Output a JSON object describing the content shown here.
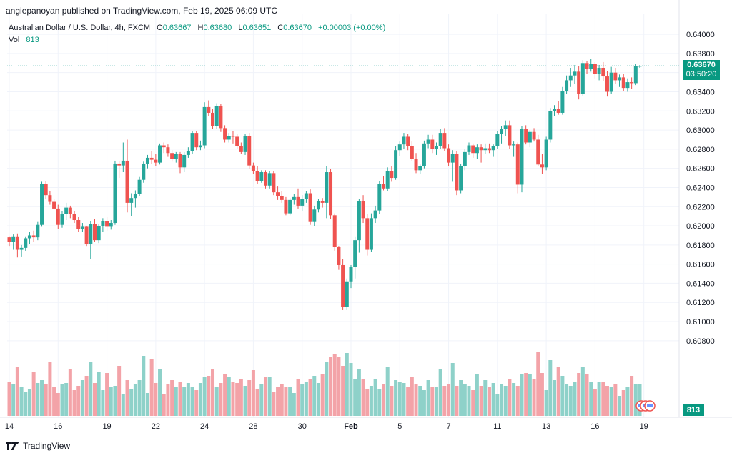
{
  "header": {
    "publisher_line": "angiepanoyan published on TradingView.com, Feb 19, 2025 06:09 UTC"
  },
  "legend": {
    "symbol": "Australian Dollar / U.S. Dollar, 4h, FXCM",
    "o_label": "O",
    "o": "0.63667",
    "h_label": "H",
    "h": "0.63680",
    "l_label": "L",
    "l": "0.63651",
    "c_label": "C",
    "c": "0.63670",
    "change": "+0.00003 (+0.00%)",
    "vol_label": "Vol",
    "vol": "813"
  },
  "price_tag": {
    "price": "0.63670",
    "countdown": "03:50:20"
  },
  "volume_tag": "813",
  "footer": {
    "brand": "TradingView"
  },
  "colors": {
    "up": "#26a69a",
    "down": "#ef5350",
    "up_vol": "#8ed1c9",
    "down_vol": "#f3a3a8",
    "accent": "#089981"
  },
  "chart_data": {
    "type": "candlestick",
    "title": "Australian Dollar / U.S. Dollar, 4h, FXCM",
    "ylim": [
      0.6,
      0.6415
    ],
    "y_ticks": [
      "0.64000",
      "0.63800",
      "0.63600",
      "0.63400",
      "0.63200",
      "0.63000",
      "0.62800",
      "0.62600",
      "0.62400",
      "0.62200",
      "0.62000",
      "0.61800",
      "0.61600",
      "0.61400",
      "0.61200",
      "0.61000",
      "0.60800"
    ],
    "x_tick_labels": [
      {
        "label": "14",
        "i": 0
      },
      {
        "label": "16",
        "i": 12
      },
      {
        "label": "19",
        "i": 24
      },
      {
        "label": "22",
        "i": 36
      },
      {
        "label": "24",
        "i": 48
      },
      {
        "label": "28",
        "i": 60
      },
      {
        "label": "30",
        "i": 72
      },
      {
        "label": "Feb",
        "i": 84
      },
      {
        "label": "5",
        "i": 96
      },
      {
        "label": "7",
        "i": 108
      },
      {
        "label": "11",
        "i": 120
      },
      {
        "label": "13",
        "i": 132
      },
      {
        "label": "16",
        "i": 144
      },
      {
        "label": "19",
        "i": 156
      }
    ],
    "last_price": 0.6367,
    "candles": [
      [
        0.6188,
        0.6189,
        0.6179,
        0.6183
      ],
      [
        0.6183,
        0.6191,
        0.6175,
        0.6189
      ],
      [
        0.6189,
        0.6192,
        0.6167,
        0.6175
      ],
      [
        0.6175,
        0.618,
        0.6168,
        0.6177
      ],
      [
        0.6177,
        0.6189,
        0.6174,
        0.6187
      ],
      [
        0.6187,
        0.6194,
        0.6181,
        0.619
      ],
      [
        0.619,
        0.6195,
        0.6183,
        0.6188
      ],
      [
        0.6188,
        0.6204,
        0.6185,
        0.6201
      ],
      [
        0.6201,
        0.6246,
        0.6199,
        0.6244
      ],
      [
        0.6244,
        0.6247,
        0.6228,
        0.6232
      ],
      [
        0.6232,
        0.6236,
        0.6222,
        0.6225
      ],
      [
        0.6225,
        0.6228,
        0.6217,
        0.6218
      ],
      [
        0.6218,
        0.6222,
        0.6197,
        0.6201
      ],
      [
        0.6201,
        0.6215,
        0.6198,
        0.6212
      ],
      [
        0.6212,
        0.6224,
        0.6206,
        0.6219
      ],
      [
        0.6219,
        0.6221,
        0.6208,
        0.6212
      ],
      [
        0.6212,
        0.6215,
        0.6203,
        0.6206
      ],
      [
        0.6206,
        0.6209,
        0.6194,
        0.6197
      ],
      [
        0.6197,
        0.6203,
        0.6194,
        0.6199
      ],
      [
        0.6199,
        0.62,
        0.6179,
        0.6181
      ],
      [
        0.6181,
        0.6205,
        0.6165,
        0.6202
      ],
      [
        0.6202,
        0.6207,
        0.6183,
        0.6185
      ],
      [
        0.6185,
        0.6202,
        0.6182,
        0.62
      ],
      [
        0.62,
        0.6208,
        0.6194,
        0.6205
      ],
      [
        0.6205,
        0.6209,
        0.6195,
        0.6199
      ],
      [
        0.6199,
        0.6206,
        0.6196,
        0.6203
      ],
      [
        0.6203,
        0.6268,
        0.6201,
        0.6265
      ],
      [
        0.6265,
        0.6268,
        0.625,
        0.6263
      ],
      [
        0.6263,
        0.6287,
        0.6256,
        0.6268
      ],
      [
        0.6268,
        0.629,
        0.6214,
        0.6224
      ],
      [
        0.6224,
        0.6234,
        0.621,
        0.6229
      ],
      [
        0.6229,
        0.6237,
        0.6219,
        0.6233
      ],
      [
        0.6233,
        0.6251,
        0.6231,
        0.6248
      ],
      [
        0.6248,
        0.6267,
        0.6245,
        0.6265
      ],
      [
        0.6265,
        0.6274,
        0.626,
        0.6271
      ],
      [
        0.6271,
        0.6278,
        0.6265,
        0.6269
      ],
      [
        0.6269,
        0.6275,
        0.6262,
        0.6266
      ],
      [
        0.6266,
        0.6286,
        0.6264,
        0.6284
      ],
      [
        0.6284,
        0.6287,
        0.6276,
        0.6282
      ],
      [
        0.6282,
        0.6285,
        0.6272,
        0.6276
      ],
      [
        0.6276,
        0.6279,
        0.6267,
        0.627
      ],
      [
        0.627,
        0.6277,
        0.6266,
        0.6275
      ],
      [
        0.6275,
        0.6277,
        0.6255,
        0.6261
      ],
      [
        0.6261,
        0.6277,
        0.6256,
        0.6274
      ],
      [
        0.6274,
        0.6282,
        0.6271,
        0.6278
      ],
      [
        0.6278,
        0.6299,
        0.6275,
        0.6297
      ],
      [
        0.6297,
        0.6299,
        0.6279,
        0.6282
      ],
      [
        0.6282,
        0.6289,
        0.6279,
        0.6284
      ],
      [
        0.6284,
        0.6329,
        0.6281,
        0.6324
      ],
      [
        0.6324,
        0.6331,
        0.6315,
        0.6318
      ],
      [
        0.6318,
        0.6322,
        0.6301,
        0.6304
      ],
      [
        0.6304,
        0.6328,
        0.6301,
        0.6325
      ],
      [
        0.6325,
        0.6327,
        0.6298,
        0.6302
      ],
      [
        0.6302,
        0.6305,
        0.6287,
        0.629
      ],
      [
        0.629,
        0.6297,
        0.6287,
        0.6294
      ],
      [
        0.6294,
        0.6299,
        0.6286,
        0.6293
      ],
      [
        0.6293,
        0.6296,
        0.628,
        0.6283
      ],
      [
        0.6283,
        0.6287,
        0.6275,
        0.6277
      ],
      [
        0.6277,
        0.6296,
        0.6274,
        0.6294
      ],
      [
        0.6294,
        0.6297,
        0.6259,
        0.6263
      ],
      [
        0.6263,
        0.6266,
        0.6254,
        0.6257
      ],
      [
        0.6257,
        0.6262,
        0.6244,
        0.6247
      ],
      [
        0.6247,
        0.6258,
        0.6245,
        0.6256
      ],
      [
        0.6256,
        0.6258,
        0.6239,
        0.6242
      ],
      [
        0.6242,
        0.6257,
        0.6239,
        0.6255
      ],
      [
        0.6255,
        0.6257,
        0.6232,
        0.6235
      ],
      [
        0.6235,
        0.6241,
        0.6227,
        0.6231
      ],
      [
        0.6231,
        0.6236,
        0.6224,
        0.6227
      ],
      [
        0.6227,
        0.623,
        0.6211,
        0.6213
      ],
      [
        0.6213,
        0.6229,
        0.6211,
        0.6227
      ],
      [
        0.6227,
        0.6233,
        0.6222,
        0.623
      ],
      [
        0.623,
        0.6239,
        0.6218,
        0.6221
      ],
      [
        0.6221,
        0.6232,
        0.6215,
        0.6228
      ],
      [
        0.6228,
        0.6236,
        0.6224,
        0.6234
      ],
      [
        0.6234,
        0.6238,
        0.6201,
        0.6204
      ],
      [
        0.6204,
        0.6221,
        0.62,
        0.6217
      ],
      [
        0.6217,
        0.6228,
        0.6214,
        0.6226
      ],
      [
        0.6226,
        0.6229,
        0.6219,
        0.6224
      ],
      [
        0.6224,
        0.6262,
        0.6208,
        0.6256
      ],
      [
        0.6256,
        0.6259,
        0.6207,
        0.6211
      ],
      [
        0.6211,
        0.6213,
        0.6174,
        0.6178
      ],
      [
        0.6178,
        0.6179,
        0.6154,
        0.6159
      ],
      [
        0.6159,
        0.6165,
        0.6112,
        0.6115
      ],
      [
        0.6115,
        0.6145,
        0.6112,
        0.6142
      ],
      [
        0.6142,
        0.6159,
        0.6135,
        0.6157
      ],
      [
        0.6157,
        0.6189,
        0.6145,
        0.6185
      ],
      [
        0.6185,
        0.6228,
        0.6172,
        0.6226
      ],
      [
        0.6226,
        0.6232,
        0.6203,
        0.6208
      ],
      [
        0.6208,
        0.6212,
        0.6169,
        0.6175
      ],
      [
        0.6175,
        0.6213,
        0.6173,
        0.6208
      ],
      [
        0.6208,
        0.6221,
        0.6203,
        0.6216
      ],
      [
        0.6216,
        0.6247,
        0.6212,
        0.6244
      ],
      [
        0.6244,
        0.6252,
        0.6237,
        0.6239
      ],
      [
        0.6239,
        0.6261,
        0.6236,
        0.6257
      ],
      [
        0.6257,
        0.6262,
        0.6246,
        0.625
      ],
      [
        0.625,
        0.6283,
        0.6248,
        0.6279
      ],
      [
        0.6279,
        0.6288,
        0.6273,
        0.6285
      ],
      [
        0.6285,
        0.6297,
        0.628,
        0.6293
      ],
      [
        0.6293,
        0.6296,
        0.6279,
        0.6283
      ],
      [
        0.6283,
        0.6288,
        0.6268,
        0.627
      ],
      [
        0.627,
        0.6276,
        0.6255,
        0.6258
      ],
      [
        0.6258,
        0.6264,
        0.6254,
        0.6262
      ],
      [
        0.6262,
        0.6289,
        0.626,
        0.6286
      ],
      [
        0.6286,
        0.6295,
        0.6281,
        0.629
      ],
      [
        0.629,
        0.6295,
        0.6276,
        0.628
      ],
      [
        0.628,
        0.6287,
        0.6274,
        0.6283
      ],
      [
        0.6283,
        0.6301,
        0.628,
        0.6297
      ],
      [
        0.6297,
        0.6302,
        0.6278,
        0.6281
      ],
      [
        0.6281,
        0.6285,
        0.6262,
        0.6266
      ],
      [
        0.6266,
        0.6279,
        0.6246,
        0.6275
      ],
      [
        0.6275,
        0.6278,
        0.6232,
        0.6237
      ],
      [
        0.6237,
        0.6265,
        0.6234,
        0.6262
      ],
      [
        0.6262,
        0.628,
        0.6258,
        0.6277
      ],
      [
        0.6277,
        0.6287,
        0.6274,
        0.6284
      ],
      [
        0.6284,
        0.6286,
        0.6271,
        0.6276
      ],
      [
        0.6276,
        0.6285,
        0.627,
        0.6282
      ],
      [
        0.6282,
        0.6285,
        0.6266,
        0.6279
      ],
      [
        0.6279,
        0.6286,
        0.6275,
        0.6281
      ],
      [
        0.6281,
        0.6286,
        0.6276,
        0.6279
      ],
      [
        0.6279,
        0.6285,
        0.6272,
        0.6283
      ],
      [
        0.6283,
        0.6299,
        0.628,
        0.6296
      ],
      [
        0.6296,
        0.6304,
        0.6286,
        0.6301
      ],
      [
        0.6301,
        0.631,
        0.6294,
        0.6305
      ],
      [
        0.6305,
        0.631,
        0.628,
        0.6284
      ],
      [
        0.6284,
        0.6288,
        0.6272,
        0.6285
      ],
      [
        0.6285,
        0.6287,
        0.6234,
        0.6243
      ],
      [
        0.6243,
        0.6304,
        0.6235,
        0.6301
      ],
      [
        0.6301,
        0.6305,
        0.6285,
        0.6287
      ],
      [
        0.6287,
        0.63,
        0.6282,
        0.6298
      ],
      [
        0.6298,
        0.6302,
        0.6288,
        0.629
      ],
      [
        0.629,
        0.6295,
        0.6262,
        0.6264
      ],
      [
        0.6264,
        0.6275,
        0.6254,
        0.6261
      ],
      [
        0.6261,
        0.6293,
        0.6258,
        0.629
      ],
      [
        0.629,
        0.6323,
        0.6287,
        0.632
      ],
      [
        0.632,
        0.6326,
        0.6315,
        0.6322
      ],
      [
        0.6322,
        0.633,
        0.6316,
        0.6318
      ],
      [
        0.6318,
        0.6345,
        0.6316,
        0.6341
      ],
      [
        0.6341,
        0.6357,
        0.6338,
        0.6352
      ],
      [
        0.6352,
        0.6365,
        0.6345,
        0.6357
      ],
      [
        0.6357,
        0.6368,
        0.6348,
        0.6361
      ],
      [
        0.6361,
        0.6367,
        0.6332,
        0.6338
      ],
      [
        0.6338,
        0.6373,
        0.6336,
        0.637
      ],
      [
        0.637,
        0.6372,
        0.6359,
        0.6364
      ],
      [
        0.6364,
        0.6374,
        0.6361,
        0.6369
      ],
      [
        0.6369,
        0.6371,
        0.6354,
        0.6359
      ],
      [
        0.6359,
        0.6368,
        0.6352,
        0.6365
      ],
      [
        0.6365,
        0.6371,
        0.6351,
        0.6356
      ],
      [
        0.6356,
        0.6362,
        0.6335,
        0.634
      ],
      [
        0.634,
        0.6366,
        0.6338,
        0.636
      ],
      [
        0.636,
        0.6365,
        0.6348,
        0.6352
      ],
      [
        0.6352,
        0.6358,
        0.6345,
        0.6355
      ],
      [
        0.6355,
        0.6359,
        0.6341,
        0.6344
      ],
      [
        0.6344,
        0.6354,
        0.634,
        0.635
      ],
      [
        0.635,
        0.6355,
        0.6343,
        0.6349
      ],
      [
        0.6349,
        0.6369,
        0.6347,
        0.6367
      ],
      [
        0.6367,
        0.6368,
        0.6365,
        0.6367
      ]
    ],
    "volumes": [
      24,
      22,
      34,
      20,
      17,
      19,
      31,
      23,
      25,
      22,
      38,
      20,
      16,
      22,
      23,
      33,
      18,
      21,
      25,
      28,
      38,
      23,
      31,
      18,
      30,
      20,
      21,
      35,
      15,
      25,
      19,
      22,
      25,
      42,
      16,
      40,
      23,
      33,
      15,
      22,
      25,
      20,
      24,
      20,
      23,
      20,
      18,
      23,
      27,
      28,
      33,
      20,
      23,
      29,
      27,
      24,
      23,
      26,
      21,
      25,
      32,
      19,
      22,
      27,
      27,
      17,
      20,
      22,
      20,
      20,
      16,
      26,
      22,
      24,
      26,
      28,
      23,
      29,
      38,
      41,
      43,
      41,
      35,
      44,
      37,
      26,
      33,
      26,
      19,
      21,
      26,
      19,
      22,
      34,
      21,
      25,
      24,
      23,
      20,
      27,
      22,
      21,
      18,
      25,
      20,
      20,
      33,
      21,
      22,
      37,
      21,
      25,
      22,
      21,
      18,
      29,
      21,
      25,
      20,
      23,
      15,
      22,
      21,
      26,
      23,
      21,
      29,
      30,
      29,
      26,
      45,
      30,
      18,
      39,
      25,
      34,
      28,
      22,
      21,
      24,
      30,
      34,
      29,
      24,
      19,
      24,
      24,
      21,
      20,
      22,
      14,
      18,
      20,
      28,
      22,
      22
    ],
    "volume_ylim": [
      0,
      60
    ]
  }
}
